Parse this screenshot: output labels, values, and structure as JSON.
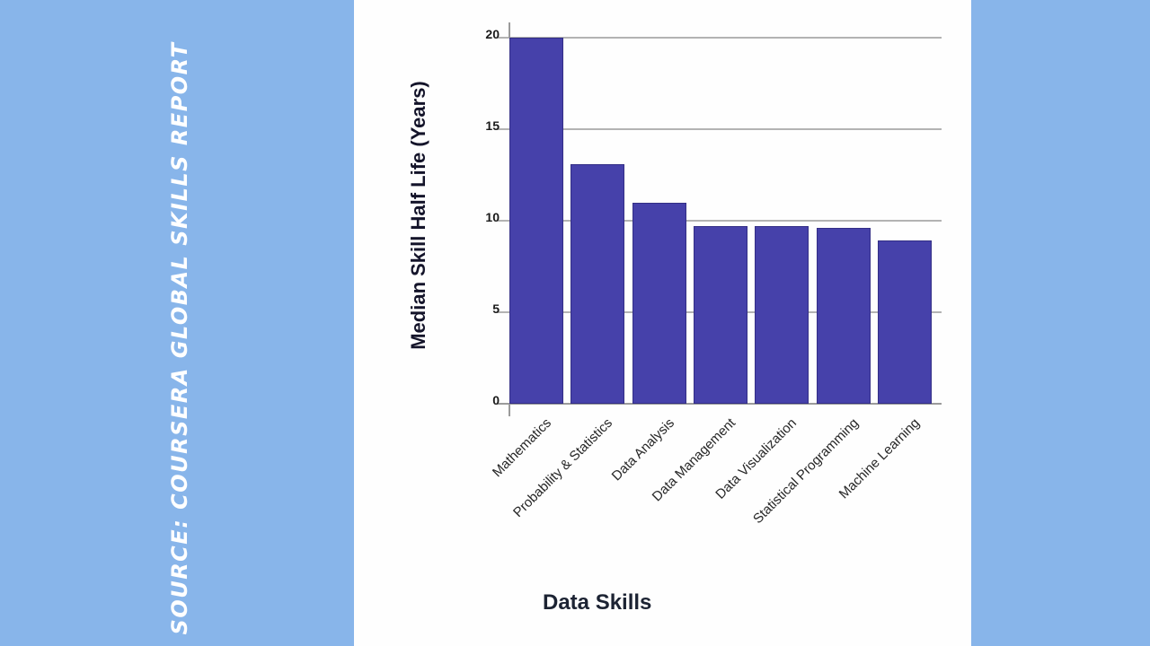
{
  "slide": {
    "background_color": "#88b5ea",
    "panel_color": "#fefefe",
    "source_label": "SOURCE: COURSERA GLOBAL SKILLS REPORT"
  },
  "chart_data": {
    "type": "bar",
    "title": "",
    "xlabel": "Data Skills",
    "ylabel": "Median Skill Half Life (Years)",
    "categories": [
      "Mathematics",
      "Probability & Statistics",
      "Data Analysis",
      "Data Management",
      "Data Visualization",
      "Statistical Programming",
      "Machine Learning"
    ],
    "values": [
      20,
      13.1,
      11,
      9.7,
      9.7,
      9.6,
      8.9
    ],
    "ylim": [
      0,
      20
    ],
    "yticks": [
      0,
      5,
      10,
      15,
      20
    ],
    "grid": true,
    "legend": false,
    "bar_color": "#4641aa",
    "bar_border_color": "#332e86",
    "gridline_color": "#b3b3b3",
    "axis_line_color": "#9b9b9b"
  }
}
